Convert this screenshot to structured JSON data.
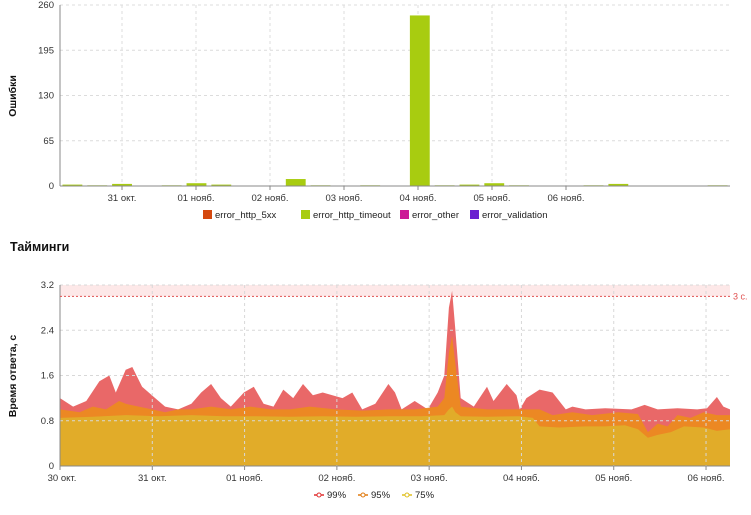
{
  "chart_data": [
    {
      "type": "bar",
      "ylabel": "Ошибки",
      "ylim": [
        0,
        260
      ],
      "yticks": [
        "0",
        "65",
        "130",
        "195",
        "260"
      ],
      "xticks": [
        "31 окт.",
        "01 нояб.",
        "02 нояб.",
        "03 нояб.",
        "04 нояб.",
        "05 нояб.",
        "06 нояб."
      ],
      "grid": true,
      "legend_position": "bottom",
      "series": [
        {
          "name": "error_http_5xx",
          "color": "#d4480f"
        },
        {
          "name": "error_http_timeout",
          "color": "#a8cc10",
          "values": [
            2,
            1,
            3,
            0,
            1,
            4,
            2,
            0,
            0,
            10,
            1,
            0,
            1,
            0,
            245,
            1,
            2,
            4,
            1,
            0,
            0,
            1,
            3,
            0,
            0,
            0,
            1
          ]
        },
        {
          "name": "error_other",
          "color": "#cc1896"
        },
        {
          "name": "error_validation",
          "color": "#6a1fd0"
        }
      ]
    },
    {
      "type": "area",
      "title": "Тайминги",
      "ylabel": "Время ответа, с",
      "ylim": [
        0,
        3.2
      ],
      "yticks": [
        "0",
        "0.8",
        "1.6",
        "2.4",
        "3.2"
      ],
      "xticks": [
        "30 окт.",
        "31 окт.",
        "01 нояб.",
        "02 нояб.",
        "03 нояб.",
        "04 нояб.",
        "05 нояб.",
        "06 нояб."
      ],
      "grid": true,
      "legend_position": "bottom",
      "threshold": {
        "value": 3.0,
        "label": "3 с.",
        "color": "#e05050"
      },
      "series": [
        {
          "name": "99%",
          "color": "#e86060",
          "points": [
            [
              0,
              1.2
            ],
            [
              0.2,
              1.05
            ],
            [
              0.4,
              1.15
            ],
            [
              0.6,
              1.5
            ],
            [
              0.75,
              1.6
            ],
            [
              0.85,
              1.3
            ],
            [
              1.0,
              1.7
            ],
            [
              1.1,
              1.75
            ],
            [
              1.25,
              1.4
            ],
            [
              1.45,
              1.2
            ],
            [
              1.6,
              1.05
            ],
            [
              1.8,
              1.0
            ],
            [
              2.0,
              1.1
            ],
            [
              2.15,
              1.3
            ],
            [
              2.3,
              1.45
            ],
            [
              2.45,
              1.2
            ],
            [
              2.6,
              1.05
            ],
            [
              2.8,
              1.3
            ],
            [
              2.95,
              1.4
            ],
            [
              3.1,
              1.1
            ],
            [
              3.25,
              1.05
            ],
            [
              3.4,
              1.35
            ],
            [
              3.55,
              1.2
            ],
            [
              3.7,
              1.45
            ],
            [
              3.85,
              1.25
            ],
            [
              4.0,
              1.3
            ],
            [
              4.3,
              1.2
            ],
            [
              4.45,
              1.3
            ],
            [
              4.6,
              1.0
            ],
            [
              4.8,
              1.1
            ],
            [
              5.0,
              1.45
            ],
            [
              5.1,
              1.3
            ],
            [
              5.2,
              1.0
            ],
            [
              5.4,
              1.15
            ],
            [
              5.6,
              1.0
            ],
            [
              5.75,
              1.3
            ],
            [
              5.85,
              1.6
            ],
            [
              5.92,
              2.8
            ],
            [
              5.97,
              3.1
            ],
            [
              6.02,
              2.4
            ],
            [
              6.1,
              1.2
            ],
            [
              6.3,
              1.05
            ],
            [
              6.5,
              1.4
            ],
            [
              6.6,
              1.15
            ],
            [
              6.8,
              1.45
            ],
            [
              6.95,
              1.25
            ],
            [
              7.0,
              1.0
            ],
            [
              7.1,
              1.2
            ],
            [
              7.3,
              1.35
            ],
            [
              7.5,
              1.3
            ],
            [
              7.7,
              1.0
            ],
            [
              7.8,
              1.05
            ],
            [
              8.0,
              1.0
            ],
            [
              8.3,
              1.02
            ],
            [
              8.7,
              1.0
            ],
            [
              8.9,
              1.08
            ],
            [
              9.1,
              1.0
            ],
            [
              9.4,
              1.02
            ],
            [
              9.7,
              1.0
            ],
            [
              9.85,
              1.02
            ],
            [
              10.0,
              1.22
            ],
            [
              10.1,
              1.05
            ],
            [
              10.2,
              1.0
            ]
          ]
        },
        {
          "name": "95%",
          "color": "#ec8a20",
          "points": [
            [
              0,
              1.0
            ],
            [
              0.3,
              0.95
            ],
            [
              0.5,
              1.05
            ],
            [
              0.7,
              1.0
            ],
            [
              0.9,
              1.15
            ],
            [
              1.0,
              1.1
            ],
            [
              1.2,
              1.05
            ],
            [
              1.4,
              1.0
            ],
            [
              1.6,
              0.95
            ],
            [
              1.8,
              1.0
            ],
            [
              2.0,
              1.0
            ],
            [
              2.3,
              1.05
            ],
            [
              2.6,
              1.0
            ],
            [
              2.9,
              1.05
            ],
            [
              3.2,
              1.0
            ],
            [
              3.5,
              1.0
            ],
            [
              3.8,
              1.05
            ],
            [
              4.2,
              1.0
            ],
            [
              4.6,
              0.98
            ],
            [
              5.0,
              1.0
            ],
            [
              5.4,
              1.0
            ],
            [
              5.75,
              1.05
            ],
            [
              5.85,
              1.2
            ],
            [
              5.92,
              2.0
            ],
            [
              5.97,
              2.3
            ],
            [
              6.02,
              1.8
            ],
            [
              6.1,
              1.05
            ],
            [
              6.5,
              1.0
            ],
            [
              7.0,
              1.0
            ],
            [
              7.3,
              1.0
            ],
            [
              7.5,
              0.9
            ],
            [
              7.8,
              0.95
            ],
            [
              8.1,
              0.9
            ],
            [
              8.5,
              0.95
            ],
            [
              8.8,
              0.92
            ],
            [
              8.95,
              0.6
            ],
            [
              9.1,
              0.75
            ],
            [
              9.25,
              0.7
            ],
            [
              9.4,
              0.9
            ],
            [
              9.6,
              0.85
            ],
            [
              9.8,
              0.95
            ],
            [
              10.0,
              0.9
            ],
            [
              10.2,
              0.9
            ]
          ]
        },
        {
          "name": "75%",
          "color": "#e0ae2a",
          "points": [
            [
              0,
              0.85
            ],
            [
              0.5,
              0.87
            ],
            [
              1.0,
              0.9
            ],
            [
              1.5,
              0.88
            ],
            [
              2.0,
              0.9
            ],
            [
              2.5,
              0.88
            ],
            [
              3.0,
              0.88
            ],
            [
              3.5,
              0.87
            ],
            [
              4.0,
              0.88
            ],
            [
              4.5,
              0.87
            ],
            [
              5.0,
              0.88
            ],
            [
              5.5,
              0.88
            ],
            [
              5.85,
              0.9
            ],
            [
              5.92,
              1.0
            ],
            [
              5.97,
              1.05
            ],
            [
              6.02,
              0.95
            ],
            [
              6.1,
              0.88
            ],
            [
              6.5,
              0.87
            ],
            [
              7.0,
              0.88
            ],
            [
              7.2,
              0.85
            ],
            [
              7.3,
              0.7
            ],
            [
              7.6,
              0.68
            ],
            [
              8.0,
              0.7
            ],
            [
              8.3,
              0.7
            ],
            [
              8.6,
              0.72
            ],
            [
              8.8,
              0.65
            ],
            [
              8.95,
              0.5
            ],
            [
              9.1,
              0.55
            ],
            [
              9.3,
              0.6
            ],
            [
              9.5,
              0.7
            ],
            [
              9.8,
              0.68
            ],
            [
              10.0,
              0.62
            ],
            [
              10.2,
              0.65
            ]
          ]
        }
      ]
    }
  ]
}
